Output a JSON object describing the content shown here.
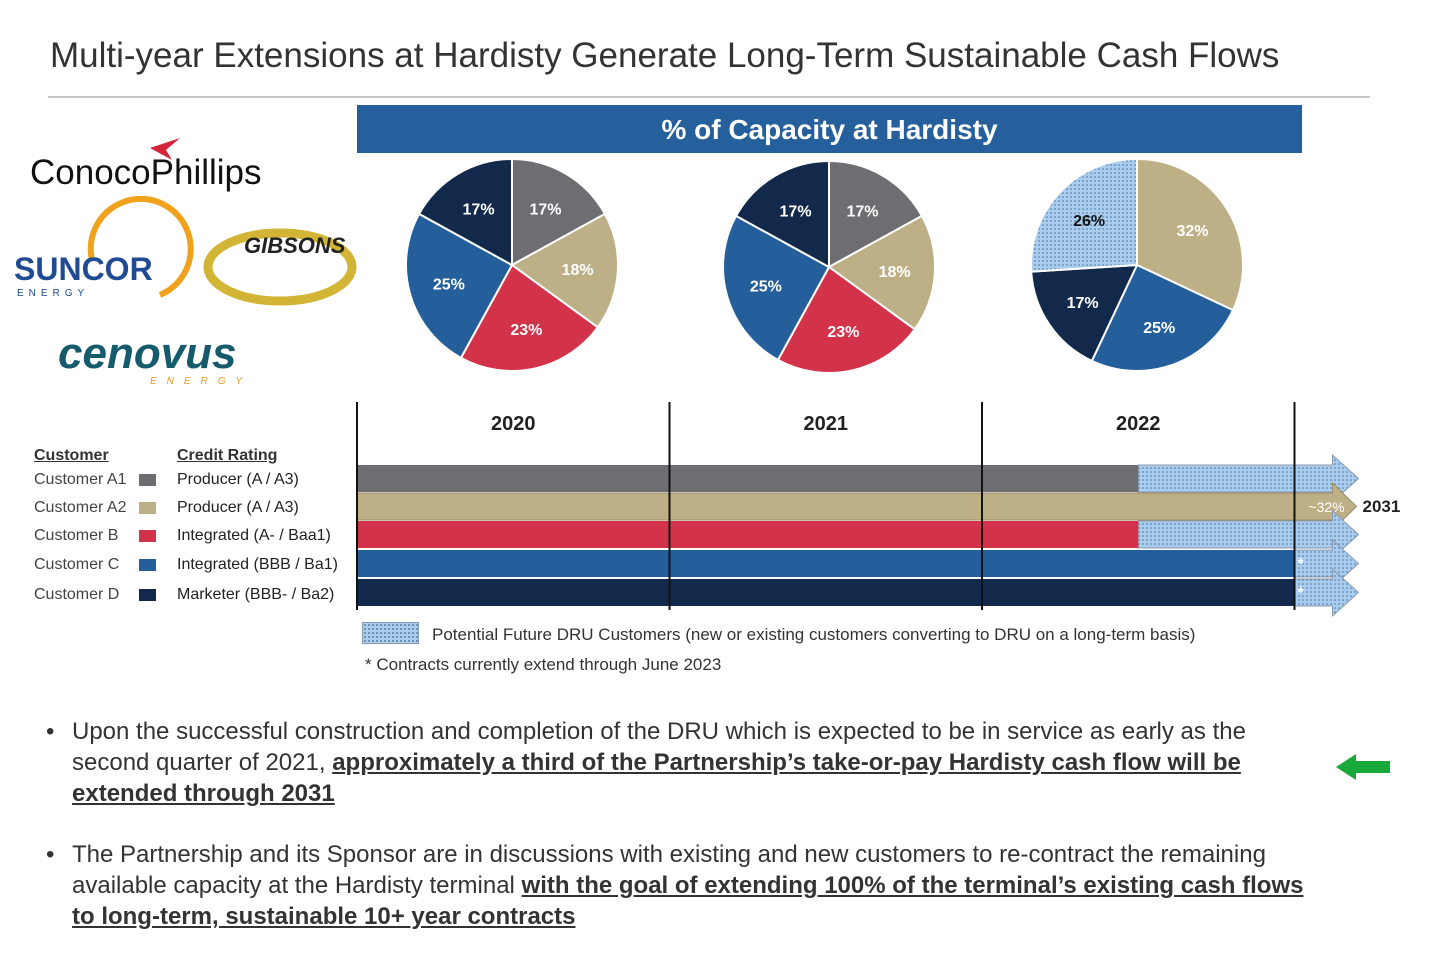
{
  "title": "Multi-year Extensions at Hardisty Generate Long-Term Sustainable Cash Flows",
  "banner": "% of Capacity at Hardisty",
  "logos": {
    "conoco": "ConocoPhillips",
    "suncor": "SUNCOR",
    "suncor_sub": "ENERGY",
    "gibsons": "GIBSONS",
    "cenovus": "cenovus",
    "cenovus_sub": "ENERGY"
  },
  "colors": {
    "customer_a1": "#6e6e72",
    "customer_a2": "#beb086",
    "customer_b": "#d3334a",
    "customer_c": "#245f9c",
    "customer_d": "#13294b",
    "dru": "#a9cdef",
    "banner": "#255f9c",
    "green_arrow": "#19a83a"
  },
  "chart_data": [
    {
      "type": "pie",
      "title": "2020",
      "slices": [
        {
          "key": "customer_a1",
          "value": 17,
          "label": "17%"
        },
        {
          "key": "customer_a2",
          "value": 18,
          "label": "18%"
        },
        {
          "key": "customer_b",
          "value": 23,
          "label": "23%"
        },
        {
          "key": "customer_c",
          "value": 25,
          "label": "25%"
        },
        {
          "key": "customer_d",
          "value": 17,
          "label": "17%"
        }
      ]
    },
    {
      "type": "pie",
      "title": "2021",
      "slices": [
        {
          "key": "customer_a1",
          "value": 17,
          "label": "17%"
        },
        {
          "key": "customer_a2",
          "value": 18,
          "label": "18%"
        },
        {
          "key": "customer_b",
          "value": 23,
          "label": "23%"
        },
        {
          "key": "customer_c",
          "value": 25,
          "label": "25%"
        },
        {
          "key": "customer_d",
          "value": 17,
          "label": "17%"
        }
      ]
    },
    {
      "type": "pie",
      "title": "2022",
      "slices": [
        {
          "key": "customer_a2",
          "value": 32,
          "label": "32%"
        },
        {
          "key": "customer_c",
          "value": 25,
          "label": "25%"
        },
        {
          "key": "customer_d",
          "value": 17,
          "label": "17%"
        },
        {
          "key": "dru",
          "value": 26,
          "label": "26%"
        }
      ]
    }
  ],
  "timeline": {
    "years": [
      "2020",
      "2021",
      "2022"
    ],
    "start": 2020,
    "end": 2023,
    "rows": [
      {
        "key": "customer_a1",
        "contract_end": 2022.5,
        "dru": true,
        "marker": ""
      },
      {
        "key": "customer_a2",
        "contract_end": 2023,
        "dru": false,
        "marker": "~32%",
        "extends_to": "2031"
      },
      {
        "key": "customer_b",
        "contract_end": 2022.5,
        "dru": true,
        "marker": ""
      },
      {
        "key": "customer_c",
        "contract_end": 2023,
        "dru": true,
        "marker": "*"
      },
      {
        "key": "customer_d",
        "contract_end": 2023,
        "dru": true,
        "marker": "*"
      }
    ]
  },
  "legend": {
    "customer_header": "Customer",
    "rating_header": "Credit Rating",
    "rows": [
      {
        "key": "customer_a1",
        "customer": "Customer A1",
        "rating": "Producer (A / A3)"
      },
      {
        "key": "customer_a2",
        "customer": "Customer A2",
        "rating": "Producer (A / A3)"
      },
      {
        "key": "customer_b",
        "customer": "Customer B",
        "rating": "Integrated (A- / Baa1)"
      },
      {
        "key": "customer_c",
        "customer": "Customer C",
        "rating": "Integrated (BBB / Ba1)"
      },
      {
        "key": "customer_d",
        "customer": "Customer D",
        "rating": "Marketer (BBB- / Ba2)"
      }
    ],
    "dru_label": "Potential Future DRU Customers (new or existing customers converting to DRU on a long-term basis)",
    "footnote": "* Contracts currently extend through June 2023"
  },
  "bullets": [
    {
      "symbol": "•",
      "line1": "Upon the successful construction and completion of the DRU which is expected to be in service as early as the",
      "lead": "second quarter of 2021, ",
      "bold1": "approximately a third of the Partnership’s take-or-pay Hardisty cash flow will be",
      "bold2": "extended through 2031"
    },
    {
      "symbol": "•",
      "line1": "The Partnership and its Sponsor are in discussions with existing and new customers to re-contract the remaining",
      "lead": "available capacity at the Hardisty terminal ",
      "bold1": "with the goal of extending 100% of the terminal’s existing cash flows",
      "bold2": "to long-term, sustainable 10+ year contracts"
    }
  ]
}
